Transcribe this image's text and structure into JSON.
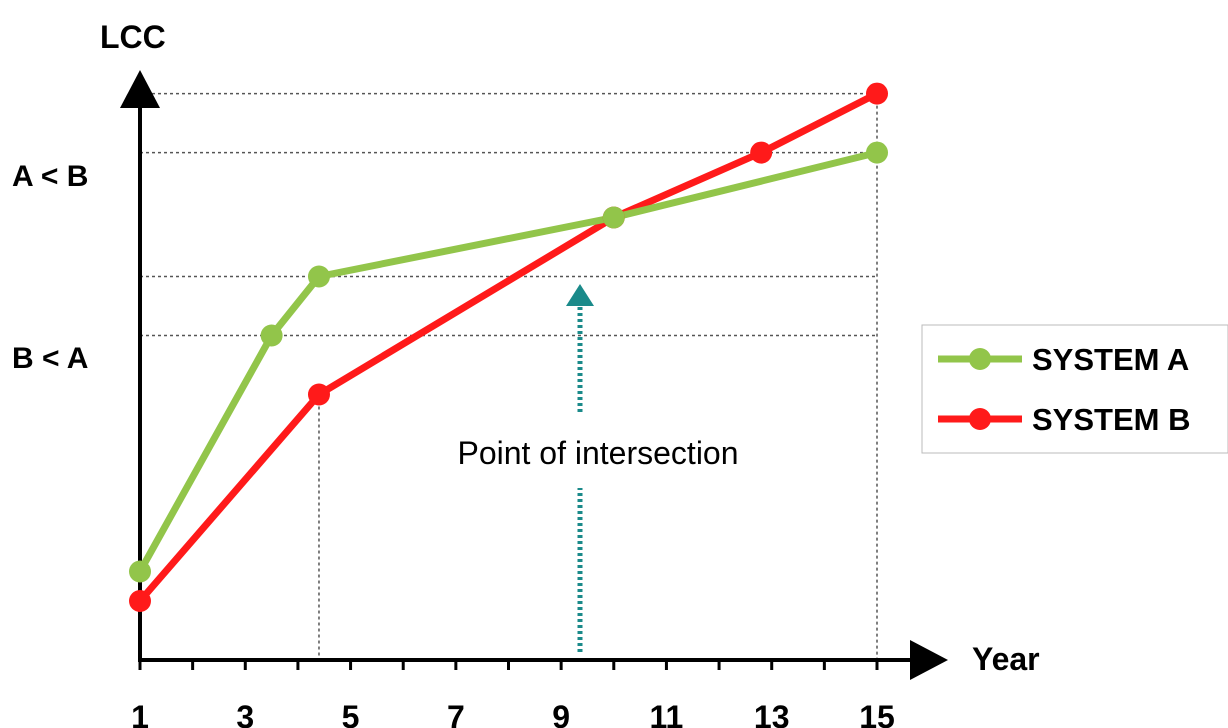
{
  "chart_data": {
    "type": "line",
    "ylabel": "LCC",
    "xlabel": "Year",
    "x_ticks": [
      1,
      3,
      5,
      7,
      9,
      11,
      13,
      15
    ],
    "xlim": [
      1,
      15
    ],
    "y_range_labels": [
      "A < B",
      "B < A"
    ],
    "annotation": "Point of intersection",
    "intersection_x": 10,
    "series": [
      {
        "name": "SYSTEM A",
        "color": "#92c54a",
        "points": [
          [
            1,
            0.15
          ],
          [
            3.5,
            0.55
          ],
          [
            4.4,
            0.65
          ],
          [
            10,
            0.75
          ],
          [
            15,
            0.86
          ]
        ]
      },
      {
        "name": "SYSTEM B",
        "color": "#ff1a1a",
        "points": [
          [
            1,
            0.1
          ],
          [
            4.4,
            0.45
          ],
          [
            10,
            0.75
          ],
          [
            12.8,
            0.86
          ],
          [
            15,
            0.96
          ]
        ]
      }
    ],
    "legend_position": "right"
  }
}
